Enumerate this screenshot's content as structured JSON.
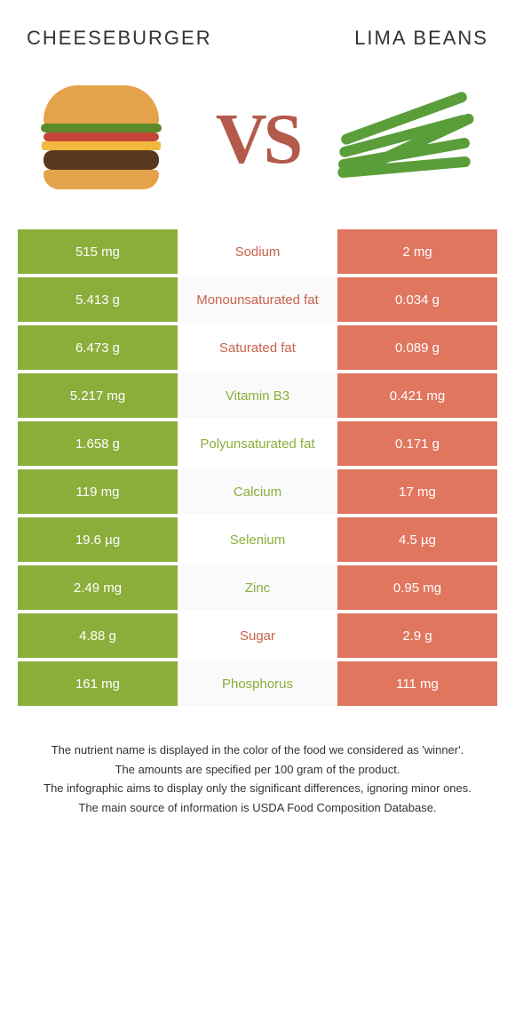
{
  "colors": {
    "left": "#8bae3b",
    "right": "#e1765f",
    "green_text": "#8bae3b",
    "red_text": "#c9634a"
  },
  "titles": {
    "left": "CHEESEBURGER",
    "right": "LIMA BEANS"
  },
  "vs": "VS",
  "rows": [
    {
      "left": "515 mg",
      "name": "Sodium",
      "right": "2 mg",
      "winner": "right"
    },
    {
      "left": "5.413 g",
      "name": "Monounsaturated fat",
      "right": "0.034 g",
      "winner": "right"
    },
    {
      "left": "6.473 g",
      "name": "Saturated fat",
      "right": "0.089 g",
      "winner": "right"
    },
    {
      "left": "5.217 mg",
      "name": "Vitamin B3",
      "right": "0.421 mg",
      "winner": "left"
    },
    {
      "left": "1.658 g",
      "name": "Polyunsaturated fat",
      "right": "0.171 g",
      "winner": "left"
    },
    {
      "left": "119 mg",
      "name": "Calcium",
      "right": "17 mg",
      "winner": "left"
    },
    {
      "left": "19.6 µg",
      "name": "Selenium",
      "right": "4.5 µg",
      "winner": "left"
    },
    {
      "left": "2.49 mg",
      "name": "Zinc",
      "right": "0.95 mg",
      "winner": "left"
    },
    {
      "left": "4.88 g",
      "name": "Sugar",
      "right": "2.9 g",
      "winner": "right"
    },
    {
      "left": "161 mg",
      "name": "Phosphorus",
      "right": "111 mg",
      "winner": "left"
    }
  ],
  "footnotes": [
    "The nutrient name is displayed in the color of the food we considered as 'winner'.",
    "The amounts are specified per 100 gram of the product.",
    "The infographic aims to display only the significant differences, ignoring minor ones.",
    "The main source of information is USDA Food Composition Database."
  ]
}
